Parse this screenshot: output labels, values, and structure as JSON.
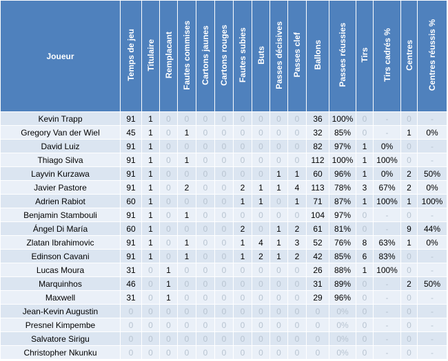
{
  "header": {
    "player_col": "Joueur",
    "columns": [
      "Temps de jeu",
      "Titulaire",
      "Remplacant",
      "Fautes commises",
      "Cartons jaunes",
      "Cartons rouges",
      "Fautes subies",
      "Buts",
      "Passes décisives",
      "Passes clef",
      "Ballons",
      "Passes réussies",
      "Tirs",
      "Tirs cadrés %",
      "Centres",
      "Centres réussis %"
    ]
  },
  "rows": [
    {
      "name": "Kevin Trapp",
      "cells": [
        "91",
        "1",
        "0",
        "0",
        "0",
        "0",
        "0",
        "0",
        "0",
        "0",
        "36",
        "100%",
        "0",
        "-",
        "0",
        "-"
      ]
    },
    {
      "name": "Gregory Van der Wiel",
      "cells": [
        "45",
        "1",
        "0",
        "1",
        "0",
        "0",
        "0",
        "0",
        "0",
        "0",
        "32",
        "85%",
        "0",
        "-",
        "1",
        "0%"
      ]
    },
    {
      "name": "David Luiz",
      "cells": [
        "91",
        "1",
        "0",
        "0",
        "0",
        "0",
        "0",
        "0",
        "0",
        "0",
        "82",
        "97%",
        "1",
        "0%",
        "0",
        "-"
      ]
    },
    {
      "name": "Thiago Silva",
      "cells": [
        "91",
        "1",
        "0",
        "1",
        "0",
        "0",
        "0",
        "0",
        "0",
        "0",
        "112",
        "100%",
        "1",
        "100%",
        "0",
        "-"
      ]
    },
    {
      "name": "Layvin Kurzawa",
      "cells": [
        "91",
        "1",
        "0",
        "0",
        "0",
        "0",
        "0",
        "0",
        "1",
        "1",
        "60",
        "96%",
        "1",
        "0%",
        "2",
        "50%"
      ]
    },
    {
      "name": "Javier Pastore",
      "cells": [
        "91",
        "1",
        "0",
        "2",
        "0",
        "0",
        "2",
        "1",
        "1",
        "4",
        "113",
        "78%",
        "3",
        "67%",
        "2",
        "0%"
      ]
    },
    {
      "name": "Adrien Rabiot",
      "cells": [
        "60",
        "1",
        "0",
        "0",
        "0",
        "0",
        "1",
        "1",
        "0",
        "1",
        "71",
        "87%",
        "1",
        "100%",
        "1",
        "100%"
      ]
    },
    {
      "name": "Benjamin Stambouli",
      "cells": [
        "91",
        "1",
        "0",
        "1",
        "0",
        "0",
        "0",
        "0",
        "0",
        "0",
        "104",
        "97%",
        "0",
        "-",
        "0",
        "-"
      ]
    },
    {
      "name": "Ángel Di María",
      "cells": [
        "60",
        "1",
        "0",
        "0",
        "0",
        "0",
        "2",
        "0",
        "1",
        "2",
        "61",
        "81%",
        "0",
        "-",
        "9",
        "44%"
      ]
    },
    {
      "name": "Zlatan Ibrahimovic",
      "cells": [
        "91",
        "1",
        "0",
        "1",
        "0",
        "0",
        "1",
        "4",
        "1",
        "3",
        "52",
        "76%",
        "8",
        "63%",
        "1",
        "0%"
      ]
    },
    {
      "name": "Edinson Cavani",
      "cells": [
        "91",
        "1",
        "0",
        "1",
        "0",
        "0",
        "1",
        "2",
        "1",
        "2",
        "42",
        "85%",
        "6",
        "83%",
        "0",
        "-"
      ]
    },
    {
      "name": "Lucas Moura",
      "cells": [
        "31",
        "0",
        "1",
        "0",
        "0",
        "0",
        "0",
        "0",
        "0",
        "0",
        "26",
        "88%",
        "1",
        "100%",
        "0",
        "-"
      ]
    },
    {
      "name": "Marquinhos",
      "cells": [
        "46",
        "0",
        "1",
        "0",
        "0",
        "0",
        "0",
        "0",
        "0",
        "0",
        "31",
        "89%",
        "0",
        "-",
        "2",
        "50%"
      ]
    },
    {
      "name": "Maxwell",
      "cells": [
        "31",
        "0",
        "1",
        "0",
        "0",
        "0",
        "0",
        "0",
        "0",
        "0",
        "29",
        "96%",
        "0",
        "-",
        "0",
        "-"
      ]
    },
    {
      "name": "Jean-Kevin Augustin",
      "cells": [
        "0",
        "0",
        "0",
        "0",
        "0",
        "0",
        "0",
        "0",
        "0",
        "0",
        "0",
        "0%",
        "0",
        "-",
        "0",
        "-"
      ]
    },
    {
      "name": "Presnel Kimpembe",
      "cells": [
        "0",
        "0",
        "0",
        "0",
        "0",
        "0",
        "0",
        "0",
        "0",
        "0",
        "0",
        "0%",
        "0",
        "-",
        "0",
        "-"
      ]
    },
    {
      "name": "Salvatore Sirigu",
      "cells": [
        "0",
        "0",
        "0",
        "0",
        "0",
        "0",
        "0",
        "0",
        "0",
        "0",
        "0",
        "0%",
        "0",
        "-",
        "0",
        "-"
      ]
    },
    {
      "name": "Christopher Nkunku",
      "cells": [
        "0",
        "0",
        "0",
        "0",
        "0",
        "0",
        "0",
        "0",
        "0",
        "0",
        "0",
        "0%",
        "0",
        "-",
        "0",
        "-"
      ]
    }
  ]
}
